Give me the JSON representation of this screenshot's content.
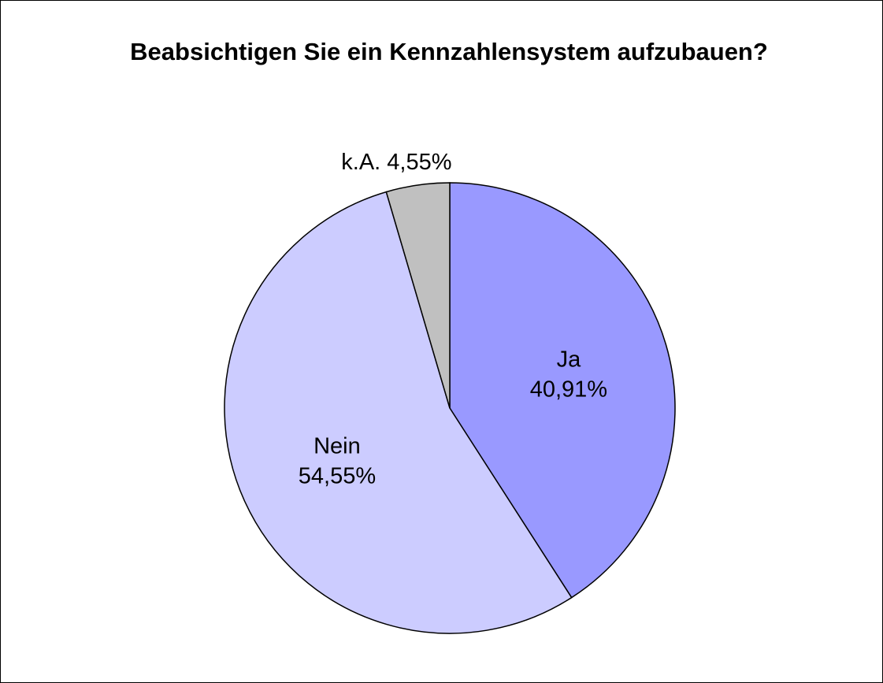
{
  "chart_data": {
    "type": "pie",
    "title": "Beabsichtigen Sie ein Kennzahlensystem aufzubauen?",
    "categories": [
      "Ja",
      "Nein",
      "k.A."
    ],
    "values": [
      40.91,
      54.55,
      4.55
    ],
    "value_labels": [
      "40,91%",
      "54,55%",
      "4,55%"
    ],
    "colors": [
      "#9999ff",
      "#ccccff",
      "#c0c0c0"
    ]
  }
}
